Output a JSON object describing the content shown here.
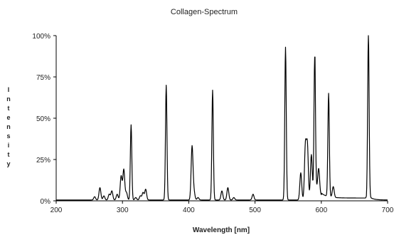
{
  "chart_data": {
    "type": "line",
    "title": "Collagen-Spectrum",
    "xlabel": "Wavelength [nm]",
    "ylabel": "Intensity",
    "xlim": [
      200,
      700
    ],
    "ylim": [
      0,
      100
    ],
    "x_ticks": [
      "200",
      "300",
      "400",
      "500",
      "600",
      "700"
    ],
    "y_ticks": [
      "0%",
      "25%",
      "50%",
      "75%",
      "100%"
    ],
    "grid": false,
    "legend": "none",
    "line_color": "#000000",
    "baseline": 0.5,
    "peaks": [
      {
        "x": 258,
        "y": 2.5
      },
      {
        "x": 266,
        "y": 8
      },
      {
        "x": 272,
        "y": 3
      },
      {
        "x": 280,
        "y": 4
      },
      {
        "x": 284,
        "y": 6
      },
      {
        "x": 292,
        "y": 4
      },
      {
        "x": 298,
        "y": 15
      },
      {
        "x": 302,
        "y": 19
      },
      {
        "x": 306,
        "y": 5
      },
      {
        "x": 313,
        "y": 46
      },
      {
        "x": 320,
        "y": 2
      },
      {
        "x": 327,
        "y": 3
      },
      {
        "x": 331,
        "y": 5
      },
      {
        "x": 335,
        "y": 7
      },
      {
        "x": 366,
        "y": 70
      },
      {
        "x": 405,
        "y": 33
      },
      {
        "x": 408,
        "y": 5
      },
      {
        "x": 414,
        "y": 2
      },
      {
        "x": 436,
        "y": 67
      },
      {
        "x": 450,
        "y": 6
      },
      {
        "x": 459,
        "y": 8
      },
      {
        "x": 468,
        "y": 2
      },
      {
        "x": 497,
        "y": 4
      },
      {
        "x": 546,
        "y": 93
      },
      {
        "x": 569,
        "y": 17
      },
      {
        "x": 576,
        "y": 33
      },
      {
        "x": 579,
        "y": 33
      },
      {
        "x": 585,
        "y": 28
      },
      {
        "x": 590,
        "y": 87
      },
      {
        "x": 596,
        "y": 15
      },
      {
        "x": 611,
        "y": 63
      },
      {
        "x": 618,
        "y": 7
      },
      {
        "x": 671,
        "y": 100
      }
    ]
  }
}
